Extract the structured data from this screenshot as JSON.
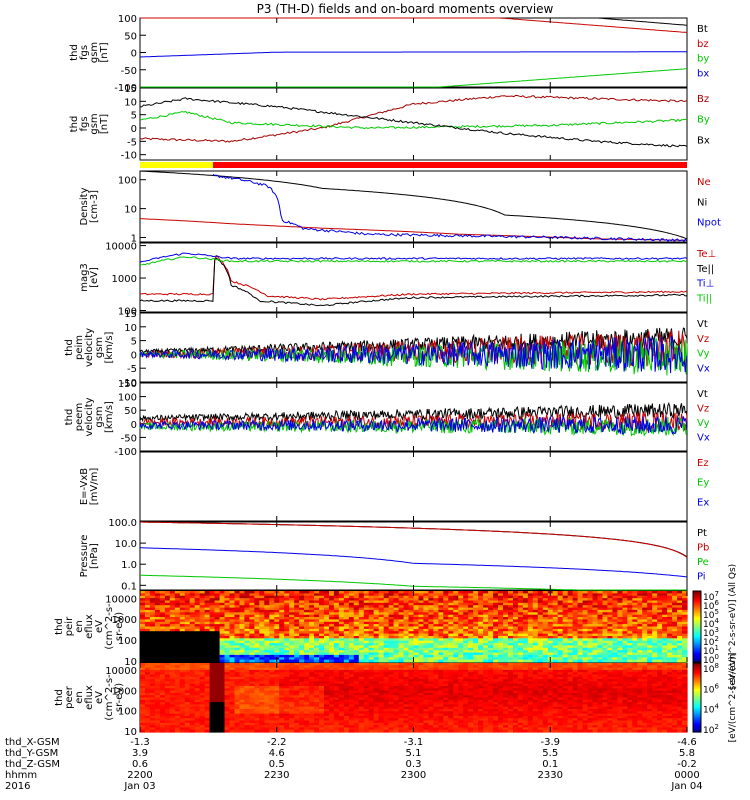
{
  "title": "P3 (TH-D) fields and on-board moments overview",
  "colors": {
    "black": "#000000",
    "red": "#c80000",
    "darkred": "#a00000",
    "green": "#00c800",
    "blue": "#0000e6"
  },
  "bar": {
    "segments": [
      {
        "from": "2200",
        "to": "2216",
        "color": "#ffff00"
      },
      {
        "from": "2216",
        "to": "0000",
        "color": "#ff0000"
      }
    ]
  },
  "chart_data": [
    {
      "type": "line",
      "ylabel": [
        "thd",
        "fgs",
        "gsm",
        "[nT]"
      ],
      "yticks": [
        "100",
        "50",
        "0",
        "-50",
        "-100"
      ],
      "ylim": [
        -100,
        100
      ],
      "series": [
        {
          "name": "Bt",
          "color": "#000000",
          "values": [
            {
              "t": 0,
              "v": 210
            },
            {
              "t": 40,
              "v": 165
            },
            {
              "t": 120,
              "v": 79
            }
          ]
        },
        {
          "name": "bz",
          "color": "#c80000",
          "values": [
            {
              "t": 0,
              "v": 190
            },
            {
              "t": 40,
              "v": 140
            },
            {
              "t": 120,
              "v": 58
            }
          ]
        },
        {
          "name": "by",
          "color": "#00c800",
          "values": [
            {
              "t": 0,
              "v": -200
            },
            {
              "t": 40,
              "v": -125
            },
            {
              "t": 120,
              "v": -47
            }
          ]
        },
        {
          "name": "bx",
          "color": "#0000e6",
          "values": [
            {
              "t": 0,
              "v": -13
            },
            {
              "t": 30,
              "v": 1
            },
            {
              "t": 120,
              "v": 2
            }
          ]
        }
      ]
    },
    {
      "type": "line",
      "ylabel": [
        "thd",
        "fgs",
        "gsm",
        "[nT]"
      ],
      "yticks": [
        "15",
        "10",
        "5",
        "0",
        "-5",
        "-10"
      ],
      "ylim": [
        -12,
        15
      ],
      "series": [
        {
          "name": "Bz",
          "color": "#a00000",
          "values": [
            {
              "t": 0,
              "v": -4
            },
            {
              "t": 20,
              "v": -5
            },
            {
              "t": 40,
              "v": 0
            },
            {
              "t": 60,
              "v": 9
            },
            {
              "t": 80,
              "v": 12
            },
            {
              "t": 100,
              "v": 11
            },
            {
              "t": 120,
              "v": 10
            }
          ]
        },
        {
          "name": "By",
          "color": "#00c800",
          "values": [
            {
              "t": 0,
              "v": 3
            },
            {
              "t": 10,
              "v": 6
            },
            {
              "t": 20,
              "v": 2
            },
            {
              "t": 50,
              "v": 0
            },
            {
              "t": 90,
              "v": 1
            },
            {
              "t": 120,
              "v": 3
            }
          ]
        },
        {
          "name": "Bx",
          "color": "#000000",
          "values": [
            {
              "t": 0,
              "v": 8
            },
            {
              "t": 10,
              "v": 11
            },
            {
              "t": 30,
              "v": 8
            },
            {
              "t": 50,
              "v": 4
            },
            {
              "t": 80,
              "v": -2
            },
            {
              "t": 100,
              "v": -5
            },
            {
              "t": 120,
              "v": -7
            }
          ]
        }
      ]
    },
    {
      "type": "line",
      "ylabel": [
        "Density",
        "[cm-3]"
      ],
      "yticks": [
        "100",
        "10",
        "1"
      ],
      "ylim": [
        0.7,
        200
      ],
      "log": true,
      "series": [
        {
          "name": "Ne",
          "color": "#c80000",
          "values": [
            {
              "t": 0,
              "v": 4.5
            },
            {
              "t": 20,
              "v": 3
            },
            {
              "t": 30,
              "v": 2.5
            },
            {
              "t": 40,
              "v": 2.1
            },
            {
              "t": 70,
              "v": 1.3
            },
            {
              "t": 100,
              "v": 0.9
            },
            {
              "t": 120,
              "v": 0.8
            }
          ]
        },
        {
          "name": "Ni",
          "color": "#000000",
          "values": [
            {
              "t": 0,
              "v": 200
            },
            {
              "t": 40,
              "v": 50
            },
            {
              "t": 80,
              "v": 6
            },
            {
              "t": 120,
              "v": 0.9
            }
          ]
        },
        {
          "name": "Npot",
          "color": "#0000e6",
          "values": [
            {
              "t": 16,
              "v": 140
            },
            {
              "t": 28,
              "v": 60
            },
            {
              "t": 30,
              "v": 25
            },
            {
              "t": 31,
              "v": 4
            },
            {
              "t": 36,
              "v": 2
            },
            {
              "t": 50,
              "v": 1.3
            },
            {
              "t": 120,
              "v": 0.8
            }
          ]
        }
      ]
    },
    {
      "type": "line",
      "ylabel": [
        "mag3",
        "[eV]"
      ],
      "yticks": [
        "10000",
        "1000",
        "100"
      ],
      "ylim": [
        90,
        12000
      ],
      "log": true,
      "series": [
        {
          "name": "Te⊥",
          "color": "#c80000",
          "values": [
            {
              "t": 0,
              "v": 320
            },
            {
              "t": 16,
              "v": 320
            },
            {
              "t": 16.5,
              "v": 5000
            },
            {
              "t": 20,
              "v": 800
            },
            {
              "t": 28,
              "v": 280
            },
            {
              "t": 40,
              "v": 220
            },
            {
              "t": 60,
              "v": 320
            },
            {
              "t": 120,
              "v": 380
            }
          ]
        },
        {
          "name": "Te||",
          "color": "#000000",
          "values": [
            {
              "t": 0,
              "v": 200
            },
            {
              "t": 16,
              "v": 200
            },
            {
              "t": 16.5,
              "v": 4500
            },
            {
              "t": 20,
              "v": 600
            },
            {
              "t": 26,
              "v": 200
            },
            {
              "t": 40,
              "v": 140
            },
            {
              "t": 60,
              "v": 250
            },
            {
              "t": 120,
              "v": 300
            }
          ]
        },
        {
          "name": "Ti⊥",
          "color": "#0000e6",
          "values": [
            {
              "t": 0,
              "v": 3000
            },
            {
              "t": 10,
              "v": 5800
            },
            {
              "t": 20,
              "v": 4000
            },
            {
              "t": 120,
              "v": 4000
            }
          ]
        },
        {
          "name": "Ti||",
          "color": "#00c800",
          "values": [
            {
              "t": 0,
              "v": 2400
            },
            {
              "t": 10,
              "v": 4500
            },
            {
              "t": 20,
              "v": 3300
            },
            {
              "t": 120,
              "v": 3300
            }
          ]
        }
      ]
    },
    {
      "type": "line",
      "ylabel": [
        "thd",
        "peim",
        "velocity",
        "gsm",
        "[km/s]"
      ],
      "yticks": [
        "15",
        "10",
        "5",
        "0",
        "-5",
        "-10"
      ],
      "ylim": [
        -10,
        15
      ],
      "noise": "growing",
      "series": [
        {
          "name": "Vt",
          "color": "#000000",
          "values": [
            {
              "t": 0,
              "v": 1
            },
            {
              "t": 120,
              "v": 6
            }
          ]
        },
        {
          "name": "Vz",
          "color": "#c80000",
          "values": [
            {
              "t": 0,
              "v": 0
            },
            {
              "t": 120,
              "v": 2
            }
          ]
        },
        {
          "name": "Vy",
          "color": "#00c800",
          "values": [
            {
              "t": 0,
              "v": 0
            },
            {
              "t": 120,
              "v": -1
            }
          ]
        },
        {
          "name": "Vx",
          "color": "#0000e6",
          "values": [
            {
              "t": 0,
              "v": 0
            },
            {
              "t": 120,
              "v": 0
            }
          ]
        }
      ]
    },
    {
      "type": "line",
      "ylabel": [
        "thd",
        "peem",
        "velocity",
        "gsm",
        "[km/s]"
      ],
      "yticks": [
        "150",
        "100",
        "50",
        "0",
        "-50",
        "-100"
      ],
      "ylim": [
        -100,
        150
      ],
      "noise": "strong",
      "series": [
        {
          "name": "Vt",
          "color": "#000000",
          "values": [
            {
              "t": 0,
              "v": 20
            },
            {
              "t": 120,
              "v": 50
            }
          ]
        },
        {
          "name": "Vz",
          "color": "#c80000",
          "values": [
            {
              "t": 0,
              "v": 5
            },
            {
              "t": 120,
              "v": 10
            }
          ]
        },
        {
          "name": "Vy",
          "color": "#00c800",
          "values": [
            {
              "t": 0,
              "v": -10
            },
            {
              "t": 120,
              "v": -10
            }
          ]
        },
        {
          "name": "Vx",
          "color": "#0000e6",
          "values": [
            {
              "t": 0,
              "v": -5
            },
            {
              "t": 120,
              "v": -5
            }
          ]
        }
      ]
    },
    {
      "type": "line",
      "ylabel": [
        "E=-VxB",
        "[mV/m]"
      ],
      "yticks": [],
      "ylim": [
        0,
        1
      ],
      "series": [
        {
          "name": "Ez",
          "color": "#c80000",
          "values": []
        },
        {
          "name": "Ey",
          "color": "#00c800",
          "values": []
        },
        {
          "name": "Ex",
          "color": "#0000e6",
          "values": []
        }
      ]
    },
    {
      "type": "line",
      "ylabel": [
        "Pressure",
        "[nPa]"
      ],
      "yticks": [
        "100.0",
        "10.0",
        "1.0",
        "0.1"
      ],
      "ylim": [
        0.06,
        100
      ],
      "log": true,
      "series": [
        {
          "name": "Pt",
          "color": "#000000",
          "values": [
            {
              "t": 0,
              "v": 100
            },
            {
              "t": 120,
              "v": 2.2
            }
          ]
        },
        {
          "name": "Pb",
          "color": "#c80000",
          "values": [
            {
              "t": 0,
              "v": 100
            },
            {
              "t": 120,
              "v": 2.1
            }
          ]
        },
        {
          "name": "Pe",
          "color": "#00c800",
          "values": [
            {
              "t": 0,
              "v": 0.3
            },
            {
              "t": 60,
              "v": 0.09
            },
            {
              "t": 120,
              "v": 0.04
            }
          ]
        },
        {
          "name": "Pi",
          "color": "#0000e6",
          "values": [
            {
              "t": 0,
              "v": 6
            },
            {
              "t": 60,
              "v": 1.1
            },
            {
              "t": 120,
              "v": 0.25
            }
          ]
        }
      ]
    },
    {
      "type": "heatmap",
      "ylabel": [
        "thd",
        "peir",
        "en",
        "eflux",
        "eV",
        "(cm^2-s-",
        "sr-eV)"
      ],
      "yticks": [
        "10000",
        "1000",
        "100",
        "10"
      ],
      "colorbar": {
        "ticks": [
          "10^7",
          "10^6",
          "10^5",
          "10^4",
          "10^3",
          "10^2",
          "10^1",
          "10^0"
        ],
        "label": "[eV/(cm^2-s-sr-eV)] (All Qs)"
      }
    },
    {
      "type": "heatmap",
      "ylabel": [
        "thd",
        "peer",
        "en",
        "eflux",
        "eV",
        "(cm^2-s-",
        "sr-eV)"
      ],
      "yticks": [
        "10000",
        "1000",
        "100",
        "10"
      ],
      "colorbar": {
        "ticks": [
          "10^8",
          "10^6",
          "10^4",
          "10^2"
        ],
        "label": "[eV/(cm^2-s-sr-eV)]"
      }
    }
  ],
  "xaxis": {
    "row_labels": [
      "thd_X-GSM",
      "thd_Y-GSM",
      "thd_Z-GSM",
      "hhmm",
      "2016"
    ],
    "ticks": [
      {
        "t": 0,
        "rows": [
          "-1.3",
          "3.9",
          "0.6",
          "2200",
          "Jan 03"
        ]
      },
      {
        "t": 30,
        "rows": [
          "-2.2",
          "4.6",
          "0.5",
          "2230",
          ""
        ]
      },
      {
        "t": 60,
        "rows": [
          "-3.1",
          "5.1",
          "0.3",
          "2300",
          ""
        ]
      },
      {
        "t": 90,
        "rows": [
          "-3.9",
          "5.5",
          "0.1",
          "2330",
          ""
        ]
      },
      {
        "t": 120,
        "rows": [
          "-4.6",
          "5.8",
          "-0.2",
          "0000",
          "Jan 04"
        ]
      }
    ]
  }
}
